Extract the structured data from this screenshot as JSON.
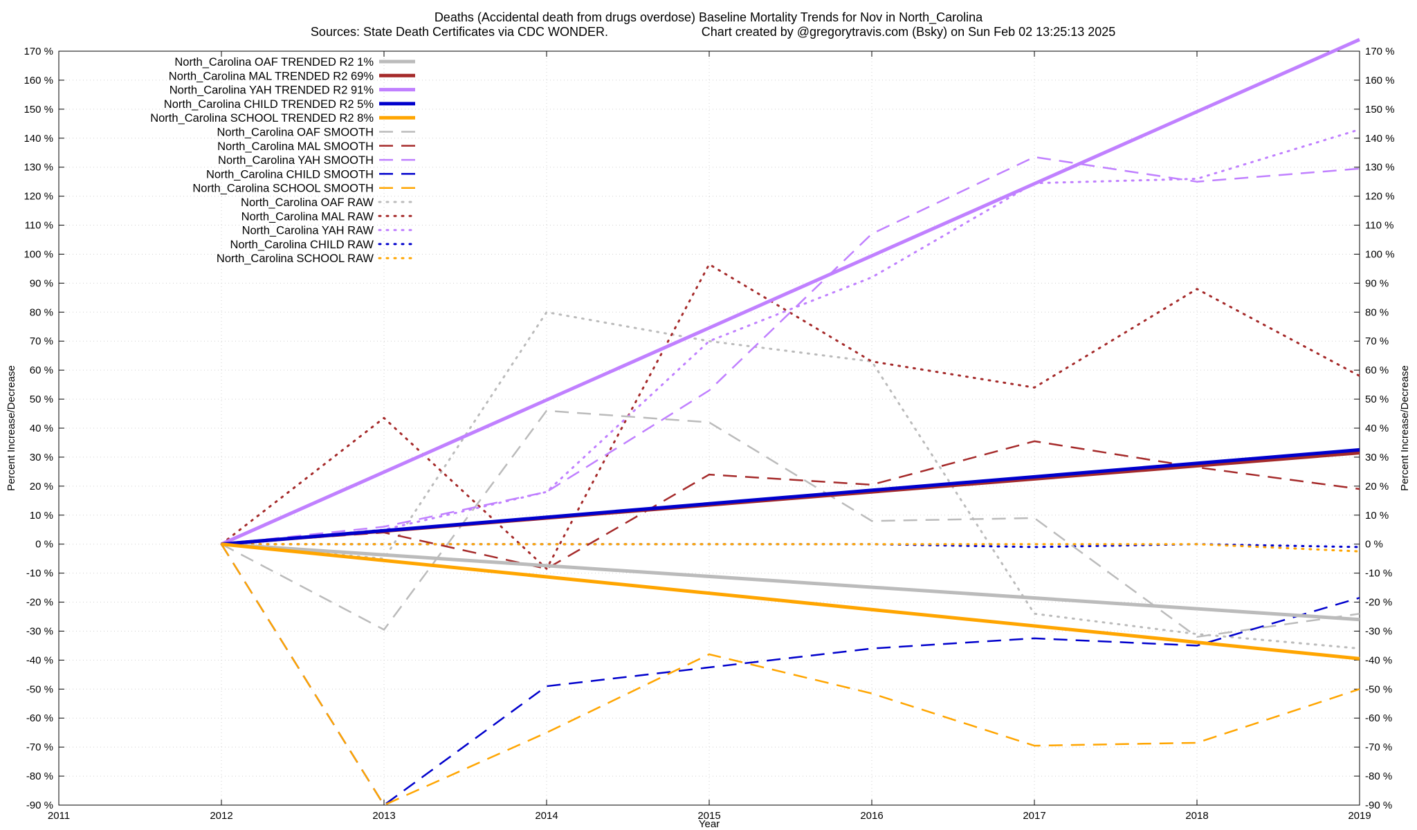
{
  "chart_data": {
    "type": "line",
    "title": "Deaths (Accidental death from drugs overdose)  Baseline Mortality Trends for Nov in North_Carolina",
    "subtitle_left": "Sources: State Death Certificates via CDC WONDER.",
    "subtitle_right": "Chart created by @gregorytravis.com (Bsky) on Sun Feb 02 13:25:13 2025",
    "xlabel": "Year",
    "ylabel_left": "Percent Increase/Decrease",
    "ylabel_right": "Percent Increase/Decrease",
    "xlim": [
      2011,
      2019
    ],
    "ylim": [
      -90,
      170
    ],
    "x_ticks": [
      2011,
      2012,
      2013,
      2014,
      2015,
      2016,
      2017,
      2018,
      2019
    ],
    "x_tick_labels": [
      "2011",
      "2012",
      "2013",
      "2014",
      "2015",
      "2016",
      "2017",
      "2018",
      "2019"
    ],
    "y_ticks": [
      -90,
      -80,
      -70,
      -60,
      -50,
      -40,
      -30,
      -20,
      -10,
      0,
      10,
      20,
      30,
      40,
      50,
      60,
      70,
      80,
      90,
      100,
      110,
      120,
      130,
      140,
      150,
      160,
      170
    ],
    "y_tick_labels": [
      "-90 %",
      "-80 %",
      "-70 %",
      "-60 %",
      "-50 %",
      "-40 %",
      "-30 %",
      "-20 %",
      "-10 %",
      "0 %",
      "10 %",
      "20 %",
      "30 %",
      "40 %",
      "50 %",
      "60 %",
      "70 %",
      "80 %",
      "90 %",
      "100 %",
      "110 %",
      "120 %",
      "130 %",
      "140 %",
      "150 %",
      "160 %",
      "170 %"
    ],
    "grid": true,
    "legend_position": "top-left",
    "series": [
      {
        "name": "North_Carolina OAF TRENDED R2  1%",
        "color": "#bbbbbb",
        "style": "solid",
        "x": [
          2012,
          2019
        ],
        "y": [
          0,
          -26
        ]
      },
      {
        "name": "North_Carolina MAL TRENDED R2  69%",
        "color": "#a52a2a",
        "style": "solid",
        "x": [
          2012,
          2019
        ],
        "y": [
          0,
          31.5
        ]
      },
      {
        "name": "North_Carolina YAH TRENDED R2  91%",
        "color": "#c080ff",
        "style": "solid",
        "x": [
          2012,
          2019
        ],
        "y": [
          0,
          174
        ]
      },
      {
        "name": "North_Carolina CHILD TRENDED R2  5%",
        "color": "#0000cc",
        "style": "solid",
        "x": [
          2012,
          2019
        ],
        "y": [
          0,
          32.5
        ]
      },
      {
        "name": "North_Carolina SCHOOL TRENDED R2  8%",
        "color": "#ffa500",
        "style": "solid",
        "x": [
          2012,
          2019
        ],
        "y": [
          0,
          -39.5
        ]
      },
      {
        "name": "North_Carolina OAF SMOOTH",
        "color": "#bbbbbb",
        "style": "dashed",
        "x": [
          2012,
          2013,
          2014,
          2015,
          2016,
          2017,
          2018,
          2019
        ],
        "y": [
          0,
          -29.5,
          46,
          42,
          8,
          9,
          -32,
          -24
        ]
      },
      {
        "name": "North_Carolina MAL SMOOTH",
        "color": "#a52a2a",
        "style": "dashed",
        "x": [
          2012,
          2013,
          2014,
          2015,
          2016,
          2017,
          2018,
          2019
        ],
        "y": [
          0,
          4,
          -8.5,
          24,
          20.5,
          35.5,
          26.5,
          19
        ]
      },
      {
        "name": "North_Carolina YAH SMOOTH",
        "color": "#c080ff",
        "style": "dashed",
        "x": [
          2012,
          2013,
          2014,
          2015,
          2016,
          2017,
          2018,
          2019
        ],
        "y": [
          0,
          6,
          18,
          53,
          107,
          133.5,
          125,
          129.5
        ]
      },
      {
        "name": "North_Carolina CHILD SMOOTH",
        "color": "#0000cc",
        "style": "dashed",
        "x": [
          2012,
          2013,
          2014,
          2015,
          2016,
          2017,
          2018,
          2019
        ],
        "y": [
          0,
          -90,
          -49,
          -42.5,
          -36,
          -32.5,
          -35,
          -18.5
        ]
      },
      {
        "name": "North_Carolina SCHOOL SMOOTH",
        "color": "#ffa500",
        "style": "dashed",
        "x": [
          2012,
          2013,
          2014,
          2015,
          2016,
          2017,
          2018,
          2019
        ],
        "y": [
          0,
          -90,
          -65,
          -38,
          -51.5,
          -69.5,
          -68.5,
          -50
        ]
      },
      {
        "name": "North_Carolina OAF RAW",
        "color": "#bbbbbb",
        "style": "dotted",
        "x": [
          2012,
          2013,
          2014,
          2015,
          2016,
          2017,
          2018,
          2019
        ],
        "y": [
          0,
          -5,
          80,
          70,
          63,
          -24,
          -31,
          -36
        ]
      },
      {
        "name": "North_Carolina MAL RAW",
        "color": "#a52a2a",
        "style": "dotted",
        "x": [
          2012,
          2013,
          2014,
          2015,
          2016,
          2017,
          2018,
          2019
        ],
        "y": [
          0,
          43.5,
          -8.5,
          96.5,
          63,
          54,
          88,
          58
        ]
      },
      {
        "name": "North_Carolina YAH RAW",
        "color": "#c080ff",
        "style": "dotted",
        "x": [
          2012,
          2013,
          2014,
          2015,
          2016,
          2017,
          2018,
          2019
        ],
        "y": [
          0,
          5,
          18,
          70,
          92,
          124.5,
          126,
          143
        ]
      },
      {
        "name": "North_Carolina CHILD RAW",
        "color": "#0000cc",
        "style": "dotted",
        "x": [
          2012,
          2013,
          2014,
          2015,
          2016,
          2017,
          2018,
          2019
        ],
        "y": [
          0,
          0,
          0,
          0,
          0,
          -1,
          0,
          -1
        ]
      },
      {
        "name": "North_Carolina SCHOOL RAW",
        "color": "#ffa500",
        "style": "dotted",
        "x": [
          2012,
          2013,
          2014,
          2015,
          2016,
          2017,
          2018,
          2019
        ],
        "y": [
          0,
          0,
          0,
          0,
          0,
          0,
          0,
          -2.5
        ]
      }
    ]
  }
}
